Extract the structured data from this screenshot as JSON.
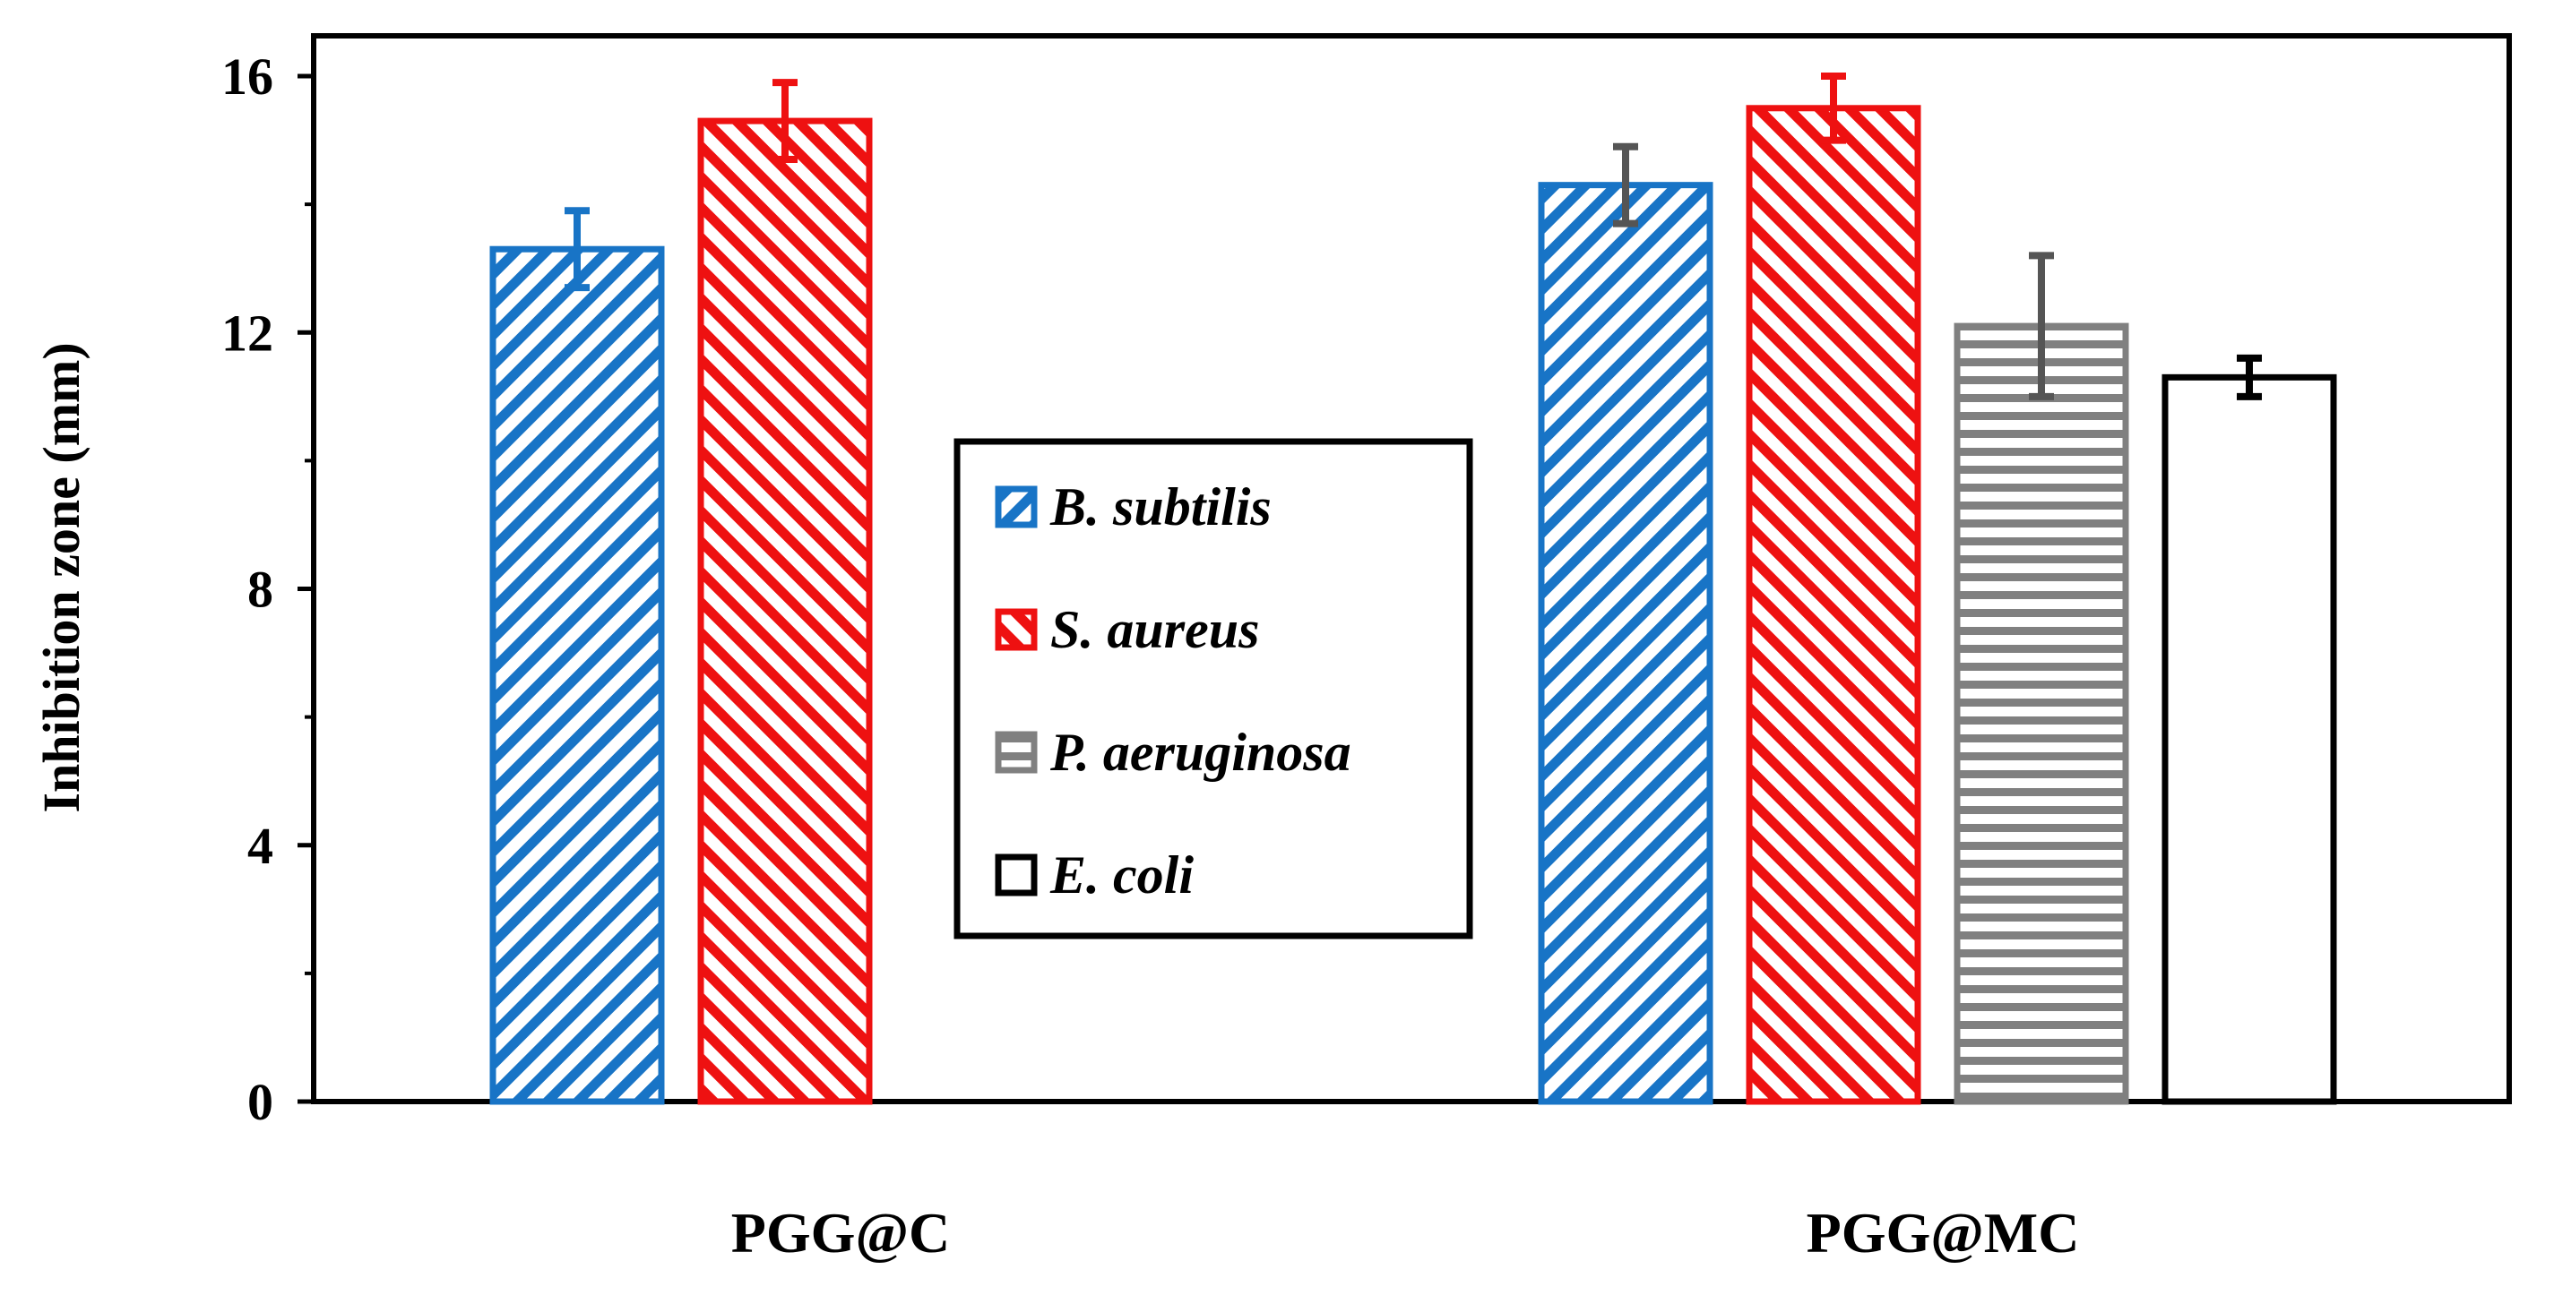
{
  "chart_data": {
    "type": "bar",
    "title": "",
    "xlabel": "",
    "ylabel": "Inhibition zone (mm)",
    "ylim": [
      0,
      16
    ],
    "yticks": [
      "0",
      "4",
      "8",
      "12",
      "16"
    ],
    "grid": false,
    "legend_placement": "center",
    "categories": [
      "PGG@C",
      "PGG@MC"
    ],
    "series": [
      {
        "name": "B. subtilis",
        "color": "#1874c6",
        "pattern": "diagonal-up",
        "values": [
          13.3,
          14.3
        ],
        "errors": [
          0.6,
          0.6
        ]
      },
      {
        "name": "S. aureus",
        "color": "#ee1111",
        "pattern": "diagonal-down",
        "values": [
          15.3,
          15.5
        ],
        "errors": [
          0.6,
          0.5
        ]
      },
      {
        "name": "P. aeruginosa",
        "color": "#808080",
        "pattern": "horizontal",
        "values": [
          null,
          12.1
        ],
        "errors": [
          null,
          1.1
        ]
      },
      {
        "name": "E. coli",
        "color": "#000000",
        "pattern": "none",
        "values": [
          null,
          11.3
        ],
        "errors": [
          null,
          0.3
        ]
      }
    ]
  }
}
